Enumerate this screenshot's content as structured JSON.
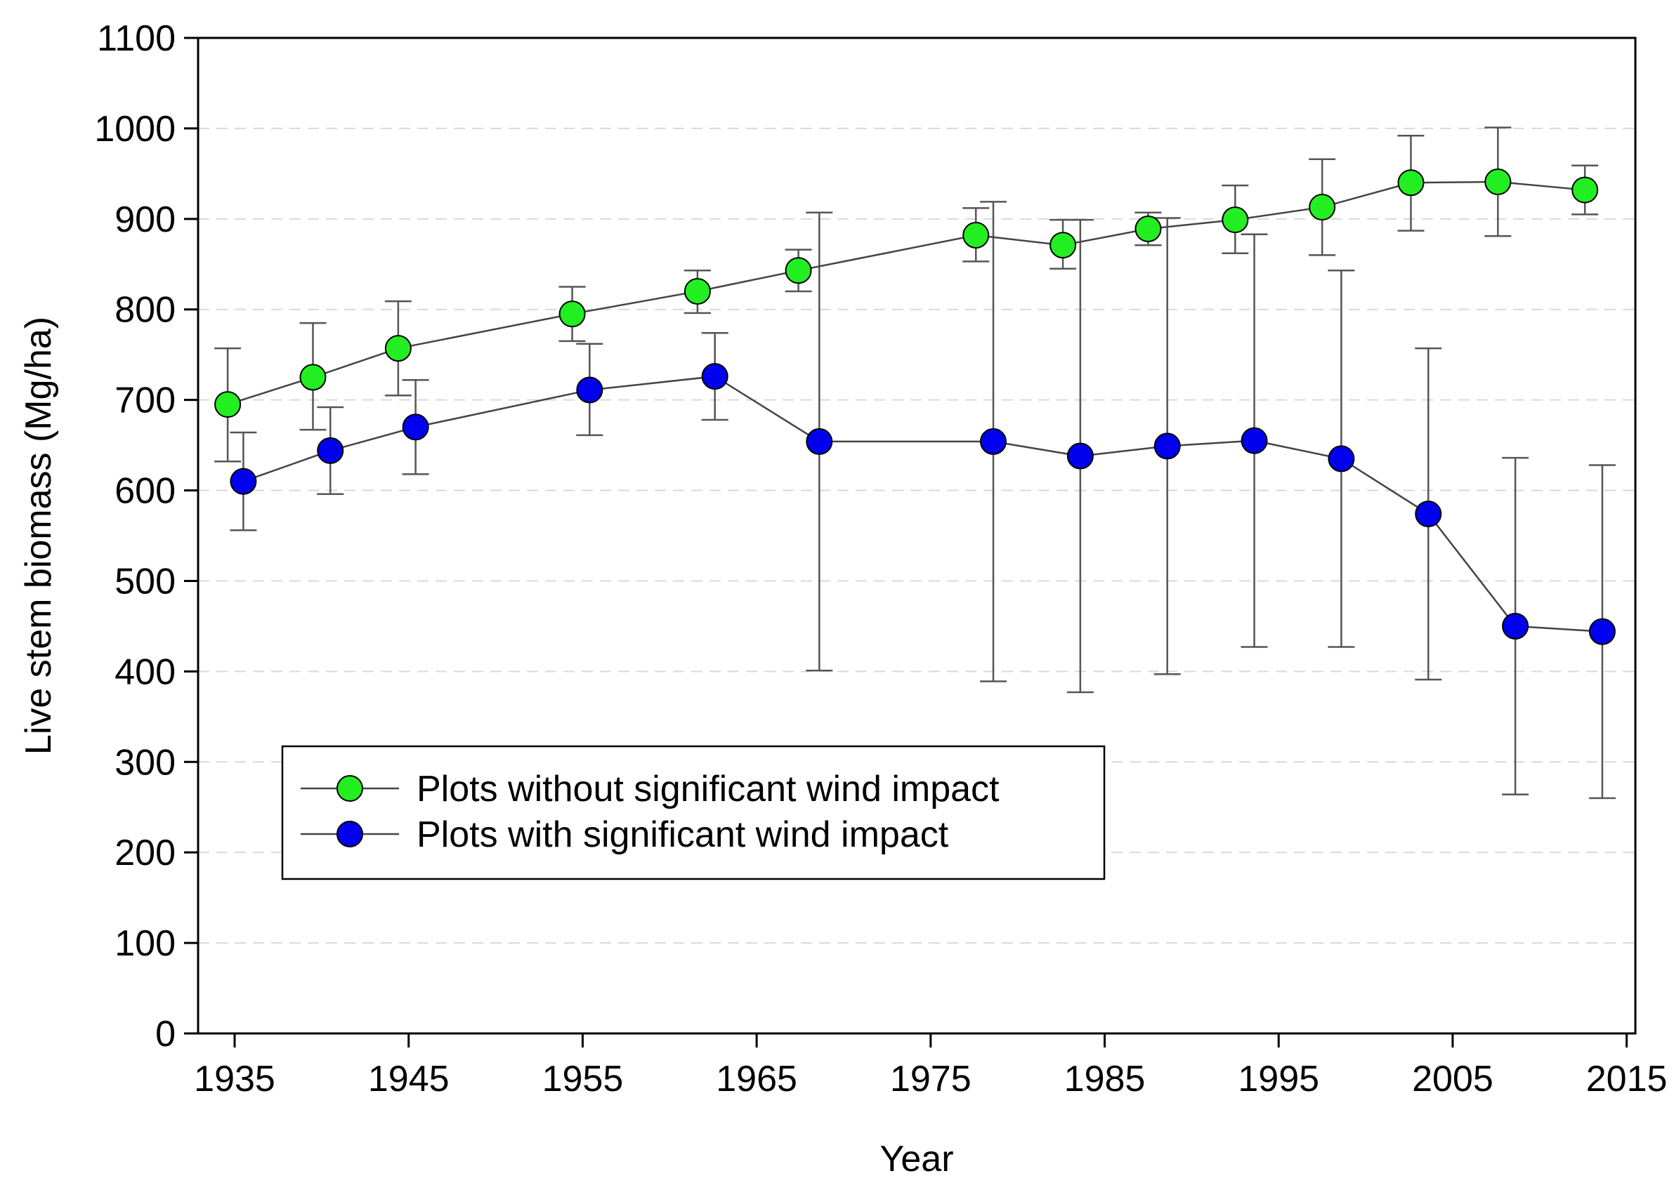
{
  "chart_data": {
    "type": "line",
    "title": "",
    "xlabel": "Year",
    "ylabel": "Live stem biomass (Mg/ha)",
    "xlim": [
      1932.9,
      2015.5
    ],
    "ylim": [
      0,
      1100
    ],
    "xticks": [
      1935,
      1945,
      1955,
      1965,
      1975,
      1985,
      1995,
      2005,
      2015
    ],
    "yticks": [
      0,
      100,
      200,
      300,
      400,
      500,
      600,
      700,
      800,
      900,
      1000,
      1100
    ],
    "grid": "horizontal dashed",
    "legend_position": "lower-left",
    "series": [
      {
        "name": "Plots without significant wind impact",
        "color": "#22ee22",
        "x": [
          1934.6,
          1939.5,
          1944.4,
          1954.4,
          1961.6,
          1967.4,
          1977.6,
          1982.6,
          1987.5,
          1992.5,
          1997.5,
          2002.6,
          2007.6,
          2012.6
        ],
        "y": [
          695,
          725,
          757,
          795,
          820,
          843,
          882,
          871,
          889,
          899,
          913,
          940,
          941,
          932
        ],
        "err_low": [
          632,
          667,
          705,
          765,
          796,
          820,
          853,
          845,
          871,
          862,
          860,
          887,
          881,
          905
        ],
        "err_high": [
          757,
          785,
          809,
          825,
          843,
          866,
          912,
          899,
          907,
          937,
          966,
          992,
          1001,
          959
        ]
      },
      {
        "name": "Plots with significant wind impact",
        "color": "#0000ee",
        "x": [
          1935.5,
          1940.5,
          1945.4,
          1955.4,
          1962.6,
          1968.6,
          1978.6,
          1983.6,
          1988.6,
          1993.6,
          1998.6,
          2003.6,
          2008.6,
          2013.6
        ],
        "y": [
          610,
          644,
          670,
          711,
          726,
          654,
          654,
          638,
          649,
          655,
          635,
          574,
          450,
          444
        ],
        "err_low": [
          556,
          596,
          618,
          661,
          678,
          401,
          389,
          377,
          397,
          427,
          427,
          391,
          264,
          260
        ],
        "err_high": [
          664,
          692,
          722,
          762,
          774,
          907,
          919,
          899,
          901,
          883,
          843,
          757,
          636,
          628
        ]
      }
    ]
  }
}
